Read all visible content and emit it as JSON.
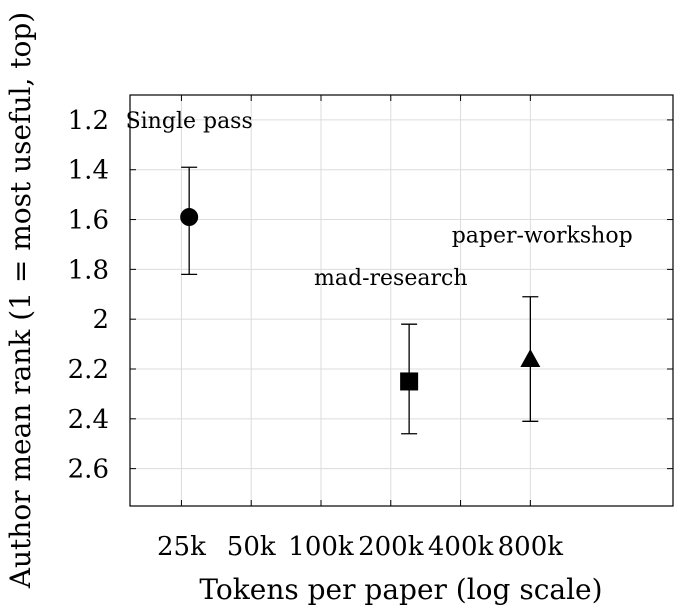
{
  "chart_data": {
    "type": "scatter",
    "xlabel": "Tokens per paper (log scale)",
    "ylabel": "Author mean rank (1 = most useful, top)",
    "x_scale": "log",
    "x_ticks": [
      25000,
      50000,
      100000,
      200000,
      400000,
      800000
    ],
    "x_tick_labels": [
      "25k",
      "50k",
      "100k",
      "200k",
      "400k",
      "800k"
    ],
    "xlim": [
      15000,
      3300000
    ],
    "y_inverted": true,
    "ylim": [
      1.1,
      2.75
    ],
    "y_ticks": [
      1.2,
      1.4,
      1.6,
      1.8,
      2.0,
      2.2,
      2.4,
      2.6
    ],
    "y_tick_labels": [
      "1.2",
      "1.4",
      "1.6",
      "1.8",
      "2",
      "2.2",
      "2.4",
      "2.6"
    ],
    "grid": true,
    "points": [
      {
        "label": "Single pass",
        "x": 27000,
        "y": 1.59,
        "err_low": 1.39,
        "err_high": 1.82,
        "marker": "circle"
      },
      {
        "label": "mad-research",
        "x": 240000,
        "y": 2.25,
        "err_low": 2.02,
        "err_high": 2.46,
        "marker": "square"
      },
      {
        "label": "paper-workshop",
        "x": 800000,
        "y": 2.16,
        "err_low": 1.91,
        "err_high": 2.41,
        "marker": "triangle"
      }
    ],
    "annotations": [
      {
        "text": "Single pass",
        "x": 27000,
        "y": 1.2
      },
      {
        "text": "mad-research",
        "x": 200000,
        "y": 1.83
      },
      {
        "text": "paper-workshop",
        "x": 900000,
        "y": 1.66
      }
    ]
  }
}
